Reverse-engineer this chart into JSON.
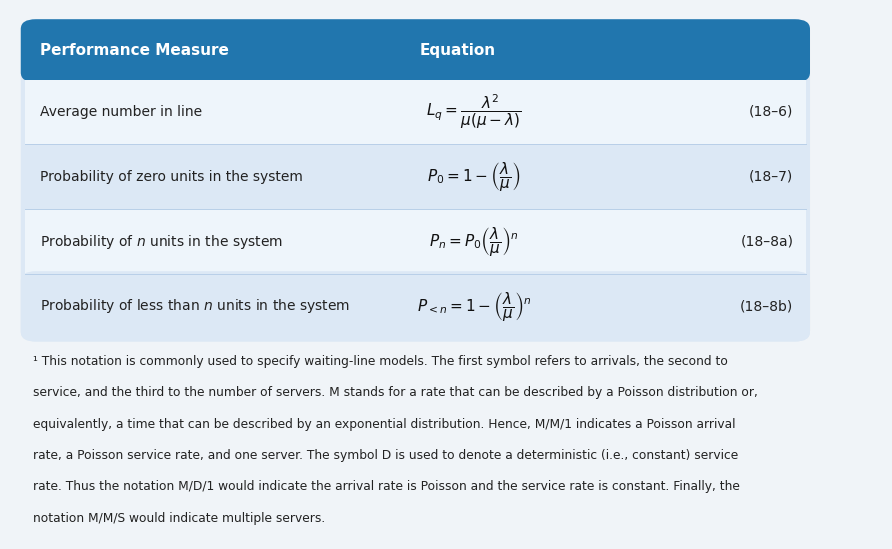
{
  "fig_width": 8.92,
  "fig_height": 5.49,
  "fig_bg": "#f0f4f8",
  "header_bg": "#2176ae",
  "header_text_color": "#ffffff",
  "row_bg_light": "#dce8f5",
  "row_bg_even": "#eef5fb",
  "header_col1": "Performance Measure",
  "header_col2": "Equation",
  "rows": [
    {
      "measure": "Average number in line",
      "equation": "$L_q = \\dfrac{\\lambda^2}{\\mu(\\mu - \\lambda)}$",
      "ref": "(18–6)"
    },
    {
      "measure": "Probability of zero units in the system",
      "equation": "$P_0 = 1 - \\left(\\dfrac{\\lambda}{\\mu}\\right)$",
      "ref": "(18–7)"
    },
    {
      "measure": "Probability of $n$ units in the system",
      "equation": "$P_n = P_0\\left(\\dfrac{\\lambda}{\\mu}\\right)^n$",
      "ref": "(18–8a)"
    },
    {
      "measure": "Probability of less than $n$ units in the system",
      "equation": "$P_{<n} = 1 - \\left(\\dfrac{\\lambda}{\\mu}\\right)^n$",
      "ref": "(18–8b)"
    }
  ],
  "footnote_lines": [
    "¹ This notation is commonly used to specify waiting-line models. The first symbol refers to arrivals, the second to",
    "service, and the third to the number of servers. M stands for a rate that can be described by a Poisson distribution or,",
    "equivalently, a time that can be described by an exponential distribution. Hence, M/M/1 indicates a Poisson arrival",
    "rate, a Poisson service rate, and one server. The symbol D is used to denote a deterministic (i.e., constant) service",
    "rate. Thus the notation M/D/1 would indicate the arrival rate is Poisson and the service rate is constant. Finally, the",
    "notation M/M/S would indicate multiple servers."
  ],
  "header_fontsize": 11,
  "row_fontsize": 10,
  "eq_fontsize": 11,
  "ref_fontsize": 10,
  "footnote_fontsize": 8.8
}
